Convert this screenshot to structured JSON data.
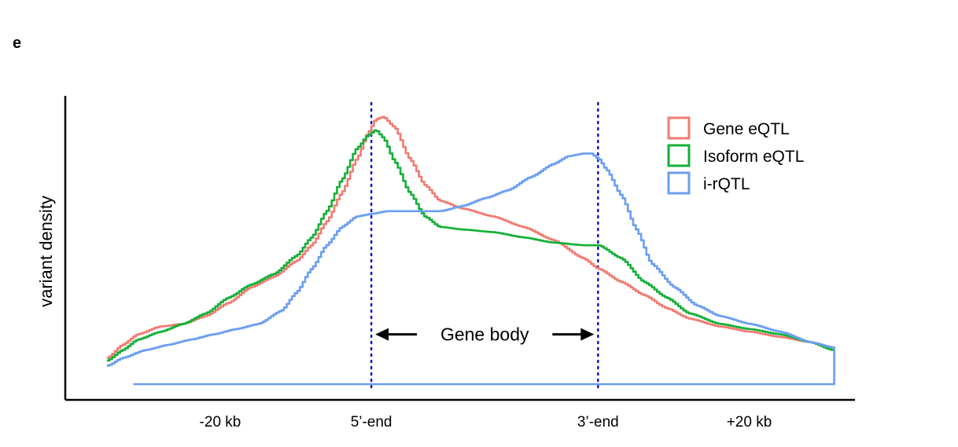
{
  "panel_label": "e",
  "chart_data": {
    "type": "line",
    "ylabel": "variant density",
    "xlabel": "",
    "x_ticks": [
      {
        "label": "-20 kb",
        "x": -20
      },
      {
        "label": "5’-end",
        "x": 0
      },
      {
        "label": "3’-end",
        "x": 30
      },
      {
        "label": "+20 kb",
        "x": 50
      }
    ],
    "xlim": [
      -40.5,
      64
    ],
    "ylim": [
      -0.06,
      1.1
    ],
    "x_unit_note": "kb; gene body spans 5’-end to 3’-end",
    "vertical_lines": [
      {
        "x": 0,
        "color": "#1010d0",
        "style": "dotted"
      },
      {
        "x": 30,
        "color": "#1010d0",
        "style": "dotted"
      }
    ],
    "annotation": {
      "text": "Gene body",
      "from": 0,
      "to": 30,
      "y": 0.19
    },
    "legend": {
      "position": "top-right"
    },
    "series": [
      {
        "name": "Gene eQTL",
        "color": "#f07b72",
        "x": [
          -35,
          -33,
          -31,
          -28,
          -25,
          -22,
          -19,
          -16,
          -13,
          -10,
          -8,
          -6,
          -4,
          -2,
          -0.5,
          0.5,
          1.5,
          3,
          5,
          7,
          9,
          12,
          16,
          20,
          24,
          28,
          30,
          33,
          36,
          39,
          42,
          46,
          50,
          54,
          58,
          61,
          66
        ],
        "y": [
          0.1,
          0.15,
          0.19,
          0.22,
          0.23,
          0.26,
          0.31,
          0.37,
          0.41,
          0.47,
          0.53,
          0.62,
          0.73,
          0.86,
          0.96,
          1.01,
          1.02,
          0.98,
          0.86,
          0.76,
          0.7,
          0.67,
          0.64,
          0.6,
          0.55,
          0.48,
          0.44,
          0.39,
          0.34,
          0.29,
          0.25,
          0.22,
          0.2,
          0.18,
          0.16,
          0.14,
          0.05
        ],
        "mark": "step"
      },
      {
        "name": "Isoform eQTL",
        "color": "#14b038",
        "x": [
          -35,
          -33,
          -31,
          -28,
          -25,
          -22,
          -19,
          -16,
          -13,
          -10,
          -8,
          -6,
          -4,
          -2,
          -0.5,
          0.5,
          1.5,
          3,
          5,
          7,
          9,
          12,
          16,
          20,
          24,
          28,
          30,
          33,
          36,
          39,
          42,
          46,
          50,
          54,
          58,
          61,
          66
        ],
        "y": [
          0.09,
          0.13,
          0.17,
          0.2,
          0.23,
          0.27,
          0.33,
          0.38,
          0.42,
          0.49,
          0.56,
          0.66,
          0.78,
          0.9,
          0.95,
          0.97,
          0.94,
          0.85,
          0.73,
          0.64,
          0.6,
          0.59,
          0.58,
          0.56,
          0.54,
          0.53,
          0.53,
          0.48,
          0.39,
          0.33,
          0.27,
          0.23,
          0.21,
          0.19,
          0.16,
          0.13,
          0.05
        ],
        "mark": "step"
      },
      {
        "name": "i-rQTL",
        "color": "#6a9ef0",
        "x": [
          -35,
          -33,
          -30,
          -27,
          -24,
          -21,
          -18,
          -15,
          -12,
          -10,
          -8,
          -6,
          -4,
          -2,
          0,
          2,
          4,
          6,
          9,
          12,
          15,
          18,
          21,
          24,
          26,
          28,
          29,
          30,
          31,
          33,
          35,
          37,
          40,
          43,
          46,
          50,
          54,
          58,
          61,
          66
        ],
        "y": [
          0.07,
          0.1,
          0.13,
          0.15,
          0.17,
          0.19,
          0.21,
          0.23,
          0.28,
          0.35,
          0.44,
          0.53,
          0.6,
          0.64,
          0.65,
          0.66,
          0.66,
          0.66,
          0.66,
          0.68,
          0.71,
          0.74,
          0.79,
          0.84,
          0.87,
          0.88,
          0.88,
          0.86,
          0.82,
          0.72,
          0.59,
          0.46,
          0.37,
          0.3,
          0.26,
          0.23,
          0.2,
          0.16,
          0.14,
          0.07
        ],
        "baseline_y": 0.0,
        "mark": "step"
      }
    ]
  }
}
